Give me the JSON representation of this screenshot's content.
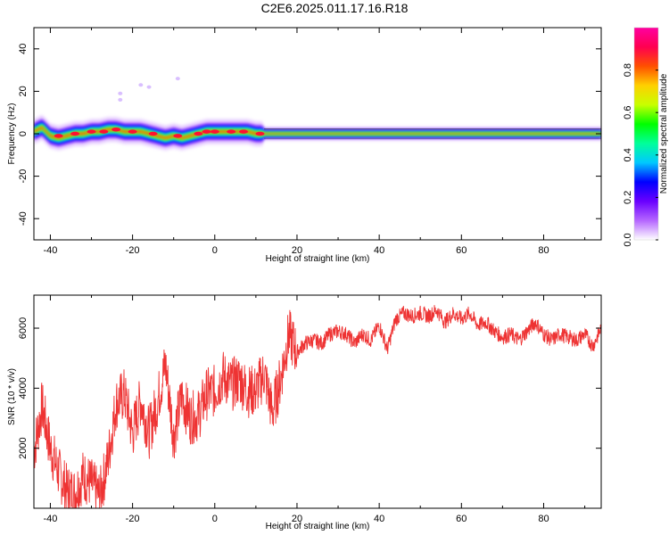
{
  "figure": {
    "title": "C2E6.2025.011.17.16.R18"
  },
  "chart_data": [
    {
      "type": "heatmap",
      "xlabel": "Height of straight line (km)",
      "ylabel": "Frequency (Hz)",
      "xlim": [
        -44,
        94
      ],
      "ylim": [
        -50,
        50
      ],
      "xticks": [
        -40,
        -20,
        0,
        20,
        40,
        60,
        80
      ],
      "yticks": [
        40,
        20,
        0,
        -20,
        -40
      ],
      "grid": false,
      "colorbar": {
        "label": "Normalized spectral amplitude",
        "range": [
          0,
          1
        ],
        "ticks": [
          0.0,
          0.2,
          0.4,
          0.6,
          0.8
        ],
        "colors": [
          "#ffffff",
          "#b566ff",
          "#6a00ff",
          "#0000ff",
          "#00c8ff",
          "#00ff9a",
          "#00ff00",
          "#c8ff00",
          "#ffd000",
          "#ff5000",
          "#ff0050",
          "#ff00a0"
        ]
      },
      "band_center_hz": [
        [
          -44,
          1
        ],
        [
          -42,
          3
        ],
        [
          -40,
          -1
        ],
        [
          -38,
          -2
        ],
        [
          -36,
          -1
        ],
        [
          -34,
          0
        ],
        [
          -32,
          0
        ],
        [
          -30,
          1
        ],
        [
          -28,
          1
        ],
        [
          -26,
          2
        ],
        [
          -24,
          2
        ],
        [
          -22,
          1
        ],
        [
          -20,
          1
        ],
        [
          -18,
          1
        ],
        [
          -16,
          0
        ],
        [
          -14,
          -1
        ],
        [
          -12,
          -2
        ],
        [
          -10,
          -1
        ],
        [
          -8,
          -2
        ],
        [
          -6,
          -1
        ],
        [
          -4,
          0
        ],
        [
          -2,
          1
        ],
        [
          0,
          1
        ],
        [
          2,
          1
        ],
        [
          4,
          1
        ],
        [
          6,
          1
        ],
        [
          8,
          1
        ],
        [
          10,
          0
        ],
        [
          12,
          0
        ],
        [
          20,
          0
        ],
        [
          40,
          0
        ],
        [
          60,
          0
        ],
        [
          80,
          0
        ],
        [
          94,
          0
        ]
      ],
      "bright_spots": [
        [
          -38,
          -1
        ],
        [
          -34,
          0
        ],
        [
          -30,
          1
        ],
        [
          -27,
          1
        ],
        [
          -24,
          2
        ],
        [
          -20,
          1
        ],
        [
          -15,
          0
        ],
        [
          -9,
          -1
        ],
        [
          -4,
          0
        ],
        [
          -2,
          1
        ],
        [
          0,
          1
        ],
        [
          4,
          1
        ],
        [
          7,
          1
        ],
        [
          11,
          0
        ]
      ],
      "scattered_points": [
        [
          -23,
          16
        ],
        [
          -23,
          19
        ],
        [
          -18,
          23
        ],
        [
          -16,
          22
        ],
        [
          -9,
          26
        ]
      ]
    },
    {
      "type": "line",
      "xlabel": "Height of straight line (km)",
      "ylabel": "SNR (10 * v/v)",
      "xlim": [
        -44,
        94
      ],
      "ylim": [
        0,
        7100
      ],
      "xticks": [
        -40,
        -20,
        0,
        20,
        40,
        60,
        80
      ],
      "yticks": [
        2000,
        4000,
        6000
      ],
      "grid": false,
      "series": [
        {
          "color": "#ee3333",
          "x": [
            -44,
            -42,
            -40,
            -38,
            -36,
            -34,
            -32,
            -30,
            -28,
            -26,
            -24,
            -22,
            -20,
            -18,
            -16,
            -14,
            -12,
            -10,
            -8,
            -6,
            -4,
            -2,
            0,
            2,
            4,
            6,
            8,
            10,
            12,
            14,
            16,
            18,
            20,
            22,
            24,
            26,
            28,
            30,
            32,
            34,
            36,
            38,
            40,
            42,
            44,
            46,
            48,
            50,
            52,
            54,
            56,
            58,
            60,
            62,
            64,
            66,
            68,
            70,
            72,
            74,
            76,
            78,
            80,
            82,
            84,
            86,
            88,
            90,
            92,
            94
          ],
          "values": [
            1900,
            3400,
            2000,
            1200,
            600,
            500,
            1100,
            800,
            400,
            1600,
            3500,
            3800,
            2500,
            3600,
            2500,
            3500,
            4800,
            2400,
            3700,
            3000,
            3100,
            3800,
            3900,
            4400,
            4100,
            4300,
            3900,
            3900,
            4500,
            3200,
            4300,
            5800,
            5200,
            5500,
            5600,
            5500,
            5800,
            5900,
            5800,
            5500,
            5800,
            5600,
            6100,
            5300,
            6300,
            6500,
            6400,
            6500,
            6400,
            6600,
            6200,
            6500,
            6300,
            6500,
            6100,
            6200,
            5900,
            5700,
            5800,
            5600,
            5900,
            6200,
            5800,
            5600,
            5800,
            5700,
            5600,
            5800,
            5400,
            6000
          ]
        }
      ]
    }
  ]
}
